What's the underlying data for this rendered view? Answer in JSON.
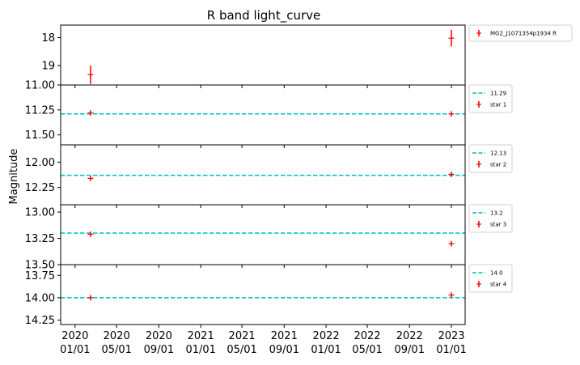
{
  "chart_data": {
    "type": "scatter",
    "title": "R band light_curve",
    "ylabel": "Magnitude",
    "xlabel": "",
    "x_ticks": [
      "2020\n01/01",
      "2020\n05/01",
      "2020\n09/01",
      "2021\n01/01",
      "2021\n05/01",
      "2021\n09/01",
      "2022\n01/01",
      "2022\n05/01",
      "2022\n09/01",
      "2023\n01/01"
    ],
    "x_tick_dates": [
      "2020-01-01",
      "2020-05-01",
      "2020-09-01",
      "2021-01-01",
      "2021-05-01",
      "2021-09-01",
      "2022-01-01",
      "2022-05-01",
      "2022-09-01",
      "2023-01-01"
    ],
    "xlim": [
      "2019-11-20",
      "2023-02-10"
    ],
    "panels": [
      {
        "ylim": [
          19.7,
          17.55
        ],
        "y_inverted": true,
        "y_ticks": [
          "18",
          "19"
        ],
        "y_tick_values": [
          18,
          19
        ],
        "series": [
          {
            "name": "MG2_J1071354p1934 R",
            "color": "#ff0000",
            "marker": "+",
            "points": [
              {
                "x": "2020-02-15",
                "y": 19.33,
                "yerr": 0.33
              },
              {
                "x": "2023-01-01",
                "y": 18.02,
                "yerr": 0.3
              }
            ]
          }
        ],
        "hline": null
      },
      {
        "ylim": [
          11.6,
          11.0
        ],
        "y_inverted": true,
        "y_ticks": [
          "11.00",
          "11.25",
          "11.50"
        ],
        "y_tick_values": [
          11.0,
          11.25,
          11.5
        ],
        "series": [
          {
            "name": "star 1",
            "color": "#ff0000",
            "marker": "+",
            "points": [
              {
                "x": "2020-02-15",
                "y": 11.28,
                "yerr": 0.02
              },
              {
                "x": "2023-01-01",
                "y": 11.29,
                "yerr": 0.02
              }
            ]
          }
        ],
        "hline": {
          "label": "11.29",
          "value": 11.29,
          "color": "#00bfbf"
        }
      },
      {
        "ylim": [
          12.42,
          11.83
        ],
        "y_inverted": true,
        "y_ticks": [
          "12.00",
          "12.25"
        ],
        "y_tick_values": [
          12.0,
          12.25
        ],
        "series": [
          {
            "name": "star 2",
            "color": "#ff0000",
            "marker": "+",
            "points": [
              {
                "x": "2020-02-15",
                "y": 12.16,
                "yerr": 0.02
              },
              {
                "x": "2023-01-01",
                "y": 12.12,
                "yerr": 0.02
              }
            ]
          }
        ],
        "hline": {
          "label": "12.13",
          "value": 12.13,
          "color": "#00bfbf"
        }
      },
      {
        "ylim": [
          13.5,
          12.93
        ],
        "y_inverted": true,
        "y_ticks": [
          "13.00",
          "13.25",
          "13.50"
        ],
        "y_tick_values": [
          13.0,
          13.25,
          13.5
        ],
        "series": [
          {
            "name": "star 3",
            "color": "#ff0000",
            "marker": "+",
            "points": [
              {
                "x": "2020-02-15",
                "y": 13.21,
                "yerr": 0.02
              },
              {
                "x": "2023-01-01",
                "y": 13.3,
                "yerr": 0.02
              }
            ]
          }
        ],
        "hline": {
          "label": "13.2",
          "value": 13.2,
          "color": "#00bfbf"
        }
      },
      {
        "ylim": [
          14.3,
          13.63
        ],
        "y_inverted": true,
        "y_ticks": [
          "13.75",
          "14.00",
          "14.25"
        ],
        "y_tick_values": [
          13.75,
          14.0,
          14.25
        ],
        "series": [
          {
            "name": "star 4",
            "color": "#ff0000",
            "marker": "+",
            "points": [
              {
                "x": "2020-02-15",
                "y": 14.0,
                "yerr": 0.02
              },
              {
                "x": "2023-01-01",
                "y": 13.97,
                "yerr": 0.02
              }
            ]
          }
        ],
        "hline": {
          "label": "14.0",
          "value": 14.0,
          "color": "#00bfbf"
        }
      }
    ],
    "legend_placement": "outside-right",
    "grid": false
  }
}
